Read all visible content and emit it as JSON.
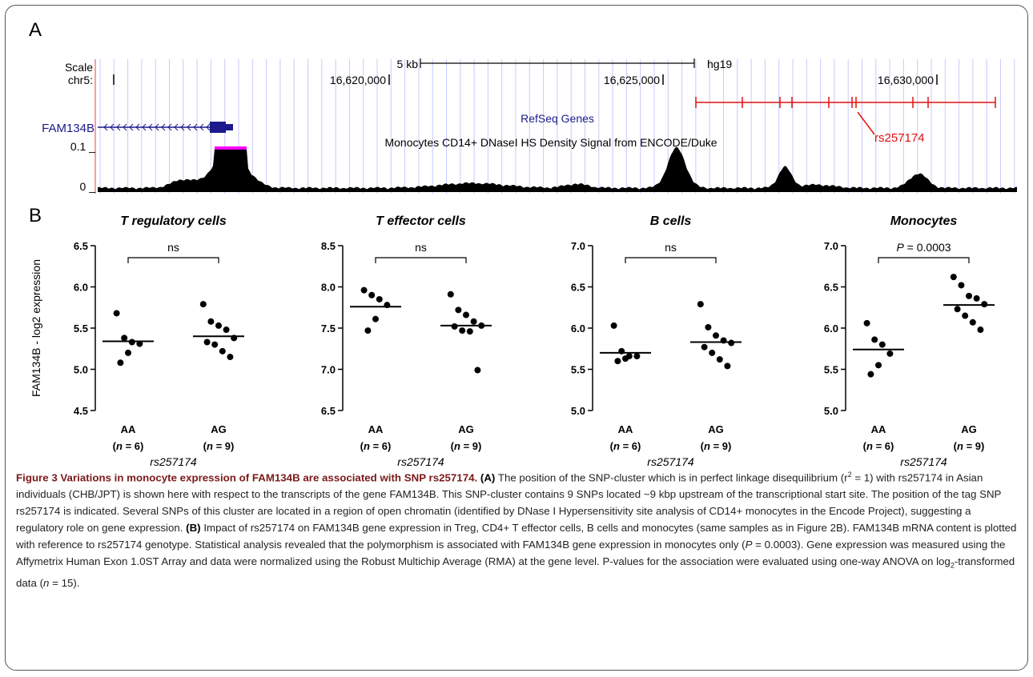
{
  "panel_labels": {
    "a": "A",
    "b": "B"
  },
  "browser": {
    "scale_label": "Scale",
    "chrom_label": "chr5:",
    "scale_bar_label": "5 kb",
    "assembly": "hg19",
    "positions": [
      {
        "label": "16,620,000",
        "pos": 16620000
      },
      {
        "label": "16,625,000",
        "pos": 16625000
      },
      {
        "label": "16,630,000",
        "pos": 16630000
      }
    ],
    "gene_name": "FAM134B",
    "refseq_track": "RefSeq Genes",
    "dnase_track": "Monocytes CD14+ DNaseI HS Density Signal from ENCODE/Duke",
    "y_top": "0.1 _",
    "y_bottom": "0 _",
    "snp_label": "rs257174",
    "colors": {
      "gene": "#1a1a8c",
      "snp": "#e01010",
      "peak_cap": "#ff00ff",
      "grid": "#c8c8ff",
      "left_line": "#f08080"
    }
  },
  "chart_data": [
    {
      "type": "scatter",
      "title": "T regulatory cells",
      "ylabel": "FAM134B - log2 expression",
      "ylim": [
        4.5,
        6.5
      ],
      "yticks": [
        "4.5",
        "5.0",
        "5.5",
        "6.0",
        "6.5"
      ],
      "categories": [
        "AA",
        "AG"
      ],
      "n_labels": [
        "6",
        "9"
      ],
      "xlabel": "rs257174",
      "significance": "ns",
      "series": [
        {
          "values": [
            5.68,
            5.38,
            5.33,
            5.31,
            5.2,
            5.08
          ],
          "mean": 5.34
        },
        {
          "values": [
            5.79,
            5.58,
            5.53,
            5.48,
            5.38,
            5.33,
            5.3,
            5.22,
            5.15
          ],
          "mean": 5.4
        }
      ]
    },
    {
      "type": "scatter",
      "title": "T effector cells",
      "ylim": [
        6.5,
        8.5
      ],
      "yticks": [
        "6.5",
        "7.0",
        "7.5",
        "8.0",
        "8.5"
      ],
      "categories": [
        "AA",
        "AG"
      ],
      "n_labels": [
        "6",
        "9"
      ],
      "xlabel": "rs257174",
      "significance": "ns",
      "series": [
        {
          "values": [
            7.96,
            7.9,
            7.85,
            7.78,
            7.61,
            7.47
          ],
          "mean": 7.76
        },
        {
          "values": [
            7.91,
            7.72,
            7.66,
            7.58,
            7.53,
            7.52,
            7.47,
            7.46,
            6.99
          ],
          "mean": 7.53
        }
      ]
    },
    {
      "type": "scatter",
      "title": "B cells",
      "ylim": [
        5.0,
        7.0
      ],
      "yticks": [
        "5.0",
        "5.5",
        "6.0",
        "6.5",
        "7.0"
      ],
      "categories": [
        "AA",
        "AG"
      ],
      "n_labels": [
        "6",
        "9"
      ],
      "xlabel": "rs257174",
      "significance": "ns",
      "series": [
        {
          "values": [
            6.03,
            5.72,
            5.66,
            5.66,
            5.63,
            5.6
          ],
          "mean": 5.7
        },
        {
          "values": [
            6.29,
            6.01,
            5.91,
            5.85,
            5.82,
            5.77,
            5.7,
            5.62,
            5.54
          ],
          "mean": 5.83
        }
      ]
    },
    {
      "type": "scatter",
      "title": "Monocytes",
      "ylim": [
        5.0,
        7.0
      ],
      "yticks": [
        "5.0",
        "5.5",
        "6.0",
        "6.5",
        "7.0"
      ],
      "categories": [
        "AA",
        "AG"
      ],
      "n_labels": [
        "6",
        "9"
      ],
      "xlabel": "rs257174",
      "significance_p": "P",
      "significance_value": "= 0.0003",
      "series": [
        {
          "values": [
            6.06,
            5.86,
            5.8,
            5.69,
            5.55,
            5.44
          ],
          "mean": 5.74
        },
        {
          "values": [
            6.62,
            6.52,
            6.39,
            6.36,
            6.29,
            6.23,
            6.15,
            6.07,
            5.98
          ],
          "mean": 6.28
        }
      ]
    }
  ],
  "caption": {
    "title": "Figure 3 Variations in monocyte expression of FAM134B are associated with SNP rs257174.",
    "a_label": "(A)",
    "a_text_1": "The position of the SNP-cluster which is in perfect linkage disequilibrium (r",
    "a_sup": "2",
    "a_text_2": " = 1) with rs257174 in Asian individuals (CHB/JPT) is shown here with respect to the transcripts of the gene FAM134B. This SNP-cluster contains 9 SNPs located ~9 kbp upstream of the transcriptional start site. The position of the tag SNP rs257174 is indicated. Several SNPs of this cluster are located in a region of open chromatin (identified by DNase I Hypersensitivity site analysis of CD14+ monocytes in the Encode Project), suggesting a regulatory role on gene expression.",
    "b_label": "(B)",
    "b_text_1": "Impact of rs257174 on FAM134B gene expression in Treg, CD4+ T effector cells, B cells and monocytes (same samples as in Figure 2B). FAM134B mRNA content is plotted with reference to rs257174 genotype. Statistical analysis revealed that the polymorphism is associated with FAM134B gene expression in monocytes only (",
    "b_p": "P",
    "b_text_2": " = 0.0003). Gene expression was measured using the Affymetrix Human Exon 1.0ST Array and data were normalized using the Robust Multichip Average (RMA) at the gene level. P-values for the association were evaluated using one-way ANOVA on log",
    "b_sub": "2",
    "b_text_3": "-transformed data (",
    "b_n": "n",
    "b_text_4": " = 15)."
  }
}
